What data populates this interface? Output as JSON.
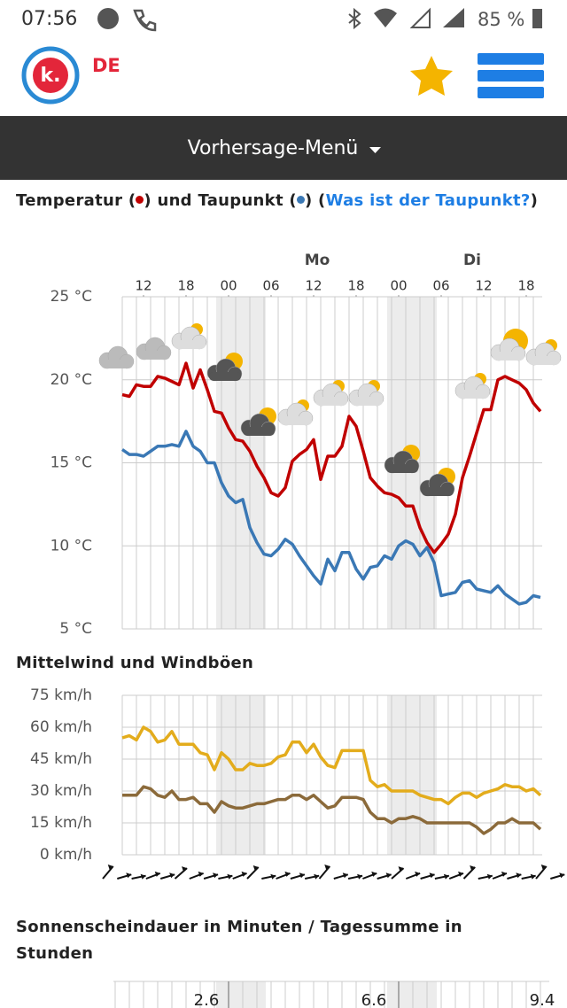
{
  "status_bar": {
    "time": "07:56",
    "battery": "85 %"
  },
  "header": {
    "logo": "k.",
    "region": "DE"
  },
  "menu": {
    "label": "Vorhersage-Menü"
  },
  "chart_data": [
    {
      "type": "line",
      "title_punctuation": [
        " (",
        ") und ",
        " (",
        ") (",
        ")"
      ],
      "title_link": "Was ist der Taupunkt?",
      "days": [
        "Mo",
        "Di"
      ],
      "x": [
        9,
        10,
        11,
        12,
        13,
        14,
        15,
        16,
        17,
        18,
        19,
        20,
        21,
        22,
        23,
        24,
        25,
        26,
        27,
        28,
        29,
        30,
        31,
        32,
        33,
        34,
        35,
        36,
        37,
        38,
        39,
        40,
        41,
        42,
        43,
        44,
        45,
        46,
        47,
        48,
        49,
        50,
        51,
        52,
        53,
        54,
        55,
        56,
        57,
        58,
        59,
        60,
        61,
        62,
        63,
        64,
        65,
        66,
        67,
        68
      ],
      "xlim": [
        9,
        68.25
      ],
      "xticks": [
        12,
        18,
        {
          "value": 24,
          "label": "00"
        },
        {
          "value": 30,
          "label": "06"
        },
        {
          "value": 36,
          "label": "12"
        },
        {
          "value": 42,
          "label": "18"
        },
        {
          "value": 48,
          "label": "00"
        },
        {
          "value": 54,
          "label": "06"
        },
        {
          "value": 60,
          "label": "12"
        },
        {
          "value": 66,
          "label": "18"
        }
      ],
      "ylim": [
        5,
        25
      ],
      "yticks": [
        {
          "value": 5,
          "label": "5 °C"
        },
        {
          "value": 10,
          "label": "10 °C"
        },
        {
          "value": 15,
          "label": "15 °C"
        },
        {
          "value": 20,
          "label": "20 °C"
        },
        {
          "value": 25,
          "label": "25 °C"
        }
      ],
      "grid": true,
      "series": [
        {
          "name": "Temperatur",
          "color": "#c00000",
          "values": [
            19.1,
            19.0,
            19.7,
            19.6,
            19.6,
            20.2,
            20.1,
            19.9,
            19.7,
            21.0,
            19.5,
            20.6,
            19.4,
            18.1,
            18.0,
            17.1,
            16.4,
            16.3,
            15.7,
            14.8,
            14.1,
            13.2,
            13.0,
            13.5,
            15.1,
            15.5,
            15.8,
            16.4,
            14.0,
            15.4,
            15.4,
            16.0,
            17.8,
            17.2,
            15.7,
            14.1,
            13.6,
            13.2,
            13.1,
            12.9,
            12.4,
            12.4,
            11.1,
            10.2,
            9.6,
            10.1,
            10.7,
            11.9,
            14.1,
            15.4,
            16.8,
            18.2,
            18.2,
            20.0,
            20.2,
            20.0,
            19.8,
            19.4,
            18.6,
            18.1
          ]
        },
        {
          "name": "Taupunkt",
          "color": "#3a78b5",
          "values": [
            15.8,
            15.5,
            15.5,
            15.4,
            15.7,
            16.0,
            16.0,
            16.1,
            16.0,
            16.9,
            16.0,
            15.7,
            15.0,
            15.0,
            13.8,
            13.0,
            12.6,
            12.8,
            11.1,
            10.2,
            9.5,
            9.4,
            9.8,
            10.4,
            10.1,
            9.4,
            8.8,
            8.2,
            7.7,
            9.2,
            8.5,
            9.6,
            9.6,
            8.6,
            8.0,
            8.7,
            8.8,
            9.4,
            9.2,
            10.0,
            10.3,
            10.1,
            9.4,
            9.9,
            9.0,
            7.0,
            7.1,
            7.2,
            7.8,
            7.9,
            7.4,
            7.3,
            7.2,
            7.6,
            7.1,
            6.8,
            6.5,
            6.6,
            7.0,
            6.9
          ]
        }
      ]
    },
    {
      "type": "line",
      "title": "Mittelwind und Windböen",
      "x": [
        9,
        10,
        11,
        12,
        13,
        14,
        15,
        16,
        17,
        18,
        19,
        20,
        21,
        22,
        23,
        24,
        25,
        26,
        27,
        28,
        29,
        30,
        31,
        32,
        33,
        34,
        35,
        36,
        37,
        38,
        39,
        40,
        41,
        42,
        43,
        44,
        45,
        46,
        47,
        48,
        49,
        50,
        51,
        52,
        53,
        54,
        55,
        56,
        57,
        58,
        59,
        60,
        61,
        62,
        63,
        64,
        65,
        66,
        67,
        68
      ],
      "xlim": [
        9,
        68.25
      ],
      "ylim": [
        0,
        75
      ],
      "yticks": [
        {
          "value": 0,
          "label": "0 km/h"
        },
        {
          "value": 15,
          "label": "15 km/h"
        },
        {
          "value": 30,
          "label": "30 km/h"
        },
        {
          "value": 45,
          "label": "45 km/h"
        },
        {
          "value": 60,
          "label": "60 km/h"
        },
        {
          "value": 75,
          "label": "75 km/h"
        }
      ],
      "grid": true,
      "series": [
        {
          "name": "Windböen",
          "color": "#e3ac1c",
          "values": [
            55,
            56,
            54,
            60,
            58,
            53,
            54,
            58,
            52,
            52,
            52,
            48,
            47,
            40,
            48,
            45,
            40,
            40,
            43,
            42,
            42,
            43,
            46,
            47,
            53,
            53,
            48,
            52,
            46,
            42,
            41,
            49,
            49,
            49,
            49,
            35,
            32,
            33,
            30,
            30,
            30,
            30,
            28,
            27,
            26,
            26,
            24,
            27,
            29,
            29,
            27,
            29,
            30,
            31,
            33,
            32,
            32,
            30,
            31,
            28
          ]
        },
        {
          "name": "Mittelwind",
          "color": "#8b6a3a",
          "values": [
            28,
            28,
            28,
            32,
            31,
            28,
            27,
            30,
            26,
            26,
            27,
            24,
            24,
            20,
            25,
            23,
            22,
            22,
            23,
            24,
            24,
            25,
            26,
            26,
            28,
            28,
            26,
            28,
            25,
            22,
            23,
            27,
            27,
            27,
            26,
            20,
            17,
            17,
            15,
            17,
            17,
            18,
            17,
            15,
            15,
            15,
            15,
            15,
            15,
            15,
            13,
            10,
            12,
            15,
            15,
            17,
            15,
            15,
            15,
            12
          ]
        }
      ]
    },
    {
      "type": "bar",
      "title": "Sonnenscheindauer in Minuten / Tagessumme in Stunden",
      "daily_totals": [
        2.6,
        6.6,
        9.4
      ]
    }
  ]
}
